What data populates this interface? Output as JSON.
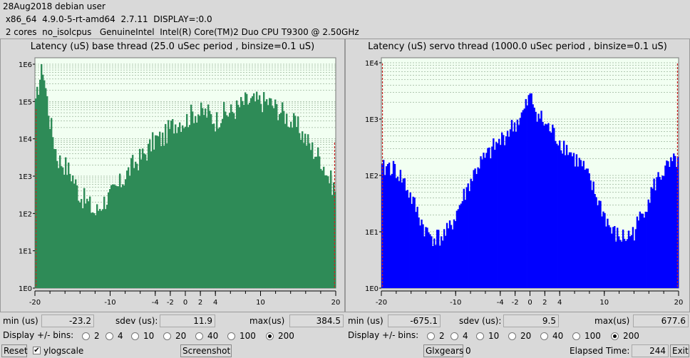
{
  "info": {
    "line1": "28Aug2018 debian user",
    "line2": " x86_64  4.9.0-5-rt-amd64  2.7.11  DISPLAY=:0.0",
    "line3": " 2 cores  no_isolcpus   GenuineIntel  Intel(R) Core(TM)2 Duo CPU T9300 @ 2.50GHz"
  },
  "base": {
    "title": "Latency (uS) base thread (25.0 uSec period , binsize=0.1 uS)",
    "min_label": "min (us)",
    "min_value": "-23.2",
    "sdev_label": "sdev (us):",
    "sdev_value": "11.9",
    "max_label": "max(us)",
    "max_value": "384.5",
    "bins_label": "Display +/- bins:"
  },
  "servo": {
    "title": "Latency (uS) servo thread (1000.0 uSec period , binsize=0.1 uS)",
    "min_label": "min (us)",
    "min_value": "-675.1",
    "sdev_label": "sdev (us):",
    "sdev_value": "9.5",
    "max_label": "max(us)",
    "max_value": "677.6",
    "bins_label": "Display +/- bins:"
  },
  "bins_options": [
    "2",
    "4",
    "10",
    "20",
    "40",
    "100",
    "200"
  ],
  "bins_selected": "200",
  "buttons": {
    "reset": "Reset",
    "ylogscale": "ylogscale",
    "screenshot": "Screenshot",
    "glxgears": "Glxgears",
    "glxgears_value": "0",
    "elapsed_label": "Elapsed Time:",
    "elapsed_value": "244",
    "exit": "Exit"
  },
  "colors": {
    "base_bars": "#2e8b57",
    "servo_bars": "#0000ff",
    "plot_bg": "#f2fff2",
    "edge_marker": "#cc2222"
  },
  "chart_data": [
    {
      "type": "bar",
      "title": "Latency (uS) base thread (25.0 uSec period , binsize=0.1 uS)",
      "xlim": [
        -20,
        20
      ],
      "x_ticks": [
        "-20",
        "-10",
        "-4",
        "-2",
        "0",
        "2",
        "4",
        "10",
        "20"
      ],
      "y_scale": "log",
      "y_ticks": [
        "1E0",
        "1E1",
        "1E2",
        "1E3",
        "1E4",
        "1E5",
        "1E6"
      ],
      "grid": true,
      "envelope": {
        "x": [
          -20,
          -19.5,
          -19,
          -18,
          -17,
          -16,
          -15,
          -14,
          -13,
          -12,
          -11,
          -10,
          -9,
          -8,
          -7,
          -6,
          -5,
          -4,
          -3,
          -2,
          -1,
          0,
          1,
          2,
          3,
          4,
          5,
          6,
          7,
          8,
          9,
          10,
          11,
          12,
          13,
          14,
          15,
          16,
          17,
          18,
          19,
          20
        ],
        "y": [
          50000,
          300000,
          1000000,
          30000,
          3000,
          2000,
          1000,
          300,
          200,
          100,
          200,
          300,
          500,
          1000,
          2000,
          3000,
          5000,
          10000,
          10000,
          20000,
          30000,
          30000,
          50000,
          50000,
          50000,
          30000,
          50000,
          50000,
          70000,
          100000,
          100000,
          100000,
          100000,
          70000,
          50000,
          30000,
          20000,
          10000,
          5000,
          3000,
          1000,
          400
        ]
      }
    },
    {
      "type": "bar",
      "title": "Latency (uS) servo thread (1000.0 uSec period , binsize=0.1 uS)",
      "xlim": [
        -20,
        20
      ],
      "x_ticks": [
        "-20",
        "-10",
        "-4",
        "-2",
        "0",
        "2",
        "4",
        "10",
        "20"
      ],
      "y_scale": "log",
      "y_ticks": [
        "1E0",
        "1E1",
        "1E2",
        "1E3",
        "1E4"
      ],
      "grid": true,
      "envelope": {
        "x": [
          -20,
          -19,
          -18,
          -17,
          -16,
          -15,
          -14,
          -13,
          -12,
          -11,
          -10,
          -9,
          -8,
          -7,
          -6,
          -5,
          -4,
          -3,
          -2,
          -1,
          0,
          1,
          2,
          3,
          4,
          5,
          6,
          7,
          8,
          9,
          10,
          11,
          12,
          13,
          14,
          15,
          16,
          17,
          18,
          19,
          20
        ],
        "y": [
          120,
          150,
          120,
          80,
          40,
          20,
          10,
          8,
          8,
          10,
          20,
          40,
          80,
          150,
          200,
          300,
          400,
          600,
          800,
          1200,
          2500,
          1300,
          800,
          600,
          400,
          300,
          200,
          150,
          80,
          40,
          20,
          10,
          8,
          8,
          10,
          20,
          40,
          80,
          120,
          150,
          200
        ]
      }
    }
  ]
}
